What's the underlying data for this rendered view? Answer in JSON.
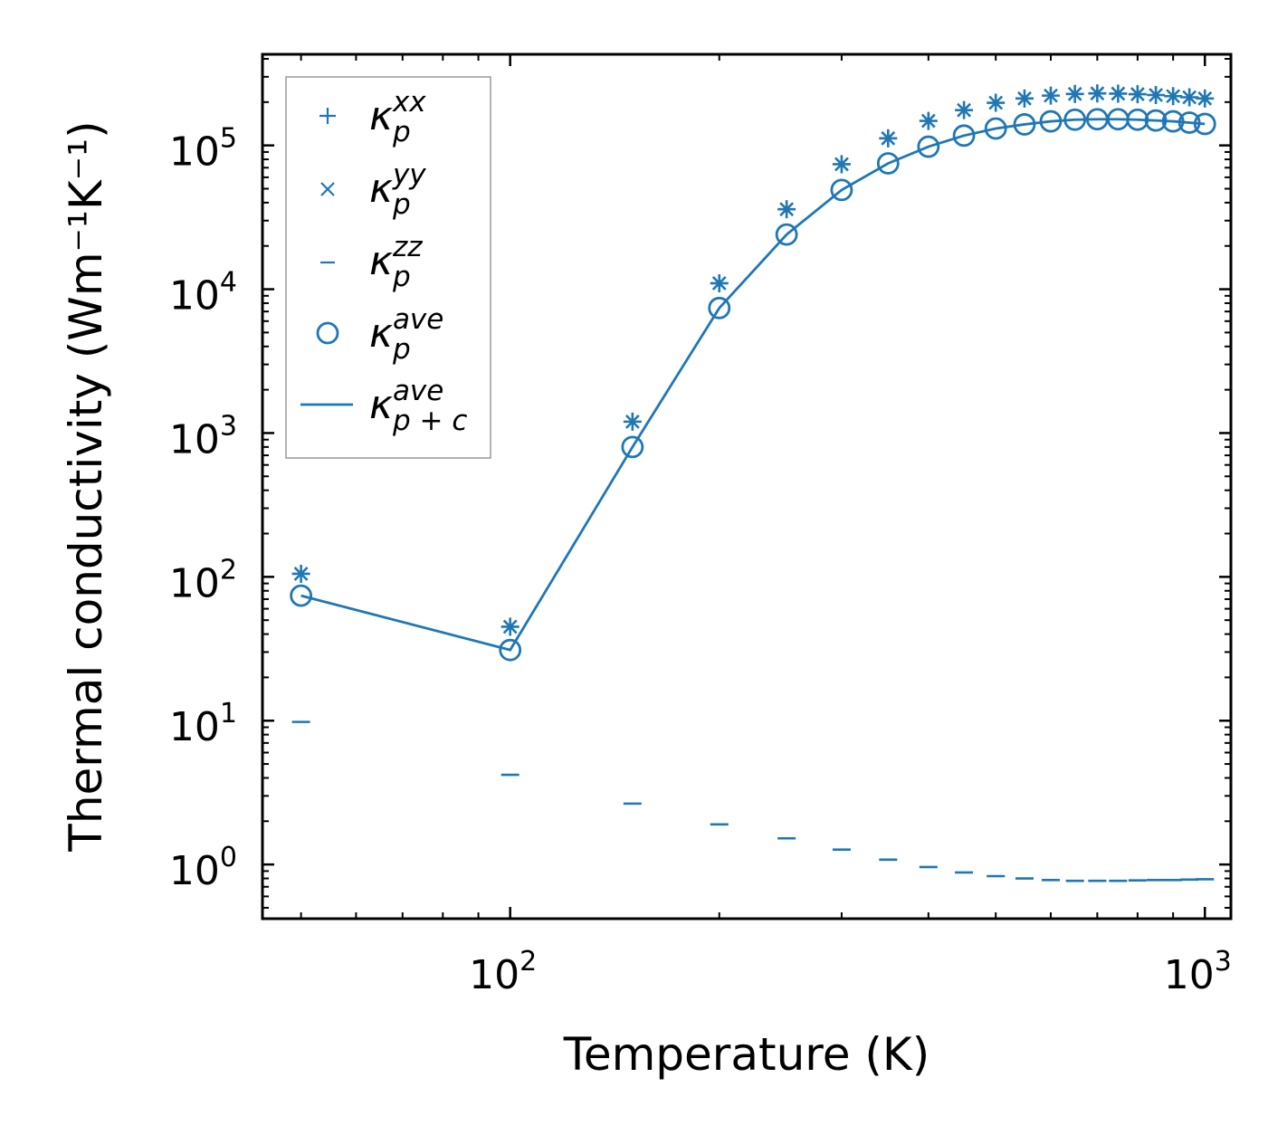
{
  "chart_data": {
    "type": "scatter",
    "xscale": "log",
    "yscale": "log",
    "xlim": [
      44,
      1090
    ],
    "ylim": [
      0.42,
      430000
    ],
    "xlabel": "Temperature (K)",
    "ylabel": "Thermal conductivity (Wm⁻¹K⁻¹)",
    "x_major_ticks": [
      {
        "value": 100,
        "base": "10",
        "exp": "2"
      },
      {
        "value": 1000,
        "base": "10",
        "exp": "3"
      }
    ],
    "y_major_ticks": [
      {
        "value": 1,
        "base": "10",
        "exp": "0"
      },
      {
        "value": 10,
        "base": "10",
        "exp": "1"
      },
      {
        "value": 100,
        "base": "10",
        "exp": "2"
      },
      {
        "value": 1000,
        "base": "10",
        "exp": "3"
      },
      {
        "value": 10000,
        "base": "10",
        "exp": "4"
      },
      {
        "value": 100000,
        "base": "10",
        "exp": "5"
      }
    ],
    "legend_position": "top-left",
    "x": [
      50,
      100,
      150,
      200,
      250,
      300,
      350,
      400,
      450,
      500,
      550,
      600,
      650,
      700,
      750,
      800,
      850,
      900,
      950,
      1000
    ],
    "series": [
      {
        "name": "kxx",
        "label_base": "κ",
        "label_sub": "p",
        "label_sup": "xx",
        "marker": "plus",
        "values": [
          105,
          45,
          1200,
          11000,
          36000,
          74000,
          112000,
          148000,
          176000,
          198000,
          212000,
          222000,
          228000,
          230000,
          229000,
          227000,
          224000,
          220000,
          216000,
          212000
        ]
      },
      {
        "name": "kyy",
        "label_base": "κ",
        "label_sub": "p",
        "label_sup": "yy",
        "marker": "x",
        "values": [
          105,
          45,
          1200,
          11000,
          36000,
          74000,
          112000,
          148000,
          176000,
          198000,
          212000,
          222000,
          228000,
          230000,
          229000,
          227000,
          224000,
          220000,
          216000,
          212000
        ]
      },
      {
        "name": "kzz",
        "label_base": "κ",
        "label_sub": "p",
        "label_sup": "zz",
        "marker": "hline",
        "values": [
          9.8,
          4.2,
          2.65,
          1.9,
          1.52,
          1.27,
          1.08,
          0.96,
          0.88,
          0.83,
          0.8,
          0.78,
          0.77,
          0.77,
          0.77,
          0.775,
          0.78,
          0.78,
          0.785,
          0.79
        ]
      },
      {
        "name": "kave",
        "label_base": "κ",
        "label_sub": "p",
        "label_sup": "ave",
        "marker": "circle",
        "values": [
          74,
          31,
          800,
          7400,
          24000,
          49000,
          75000,
          98000,
          117000,
          131000,
          140000,
          147000,
          151000,
          152000,
          152000,
          151000,
          149000,
          147000,
          144000,
          141000
        ]
      },
      {
        "name": "kpc",
        "label_base": "κ",
        "label_sub": "p + c",
        "label_sup": "ave",
        "marker": "line",
        "values": [
          74,
          31,
          800,
          7400,
          24000,
          49000,
          75000,
          98000,
          117000,
          131000,
          140000,
          147000,
          151000,
          152000,
          152000,
          151000,
          149000,
          147000,
          144000,
          141000
        ]
      }
    ],
    "colors": {
      "series": "#1f77b4",
      "axes": "#000000",
      "legend_border": "#999999"
    }
  }
}
